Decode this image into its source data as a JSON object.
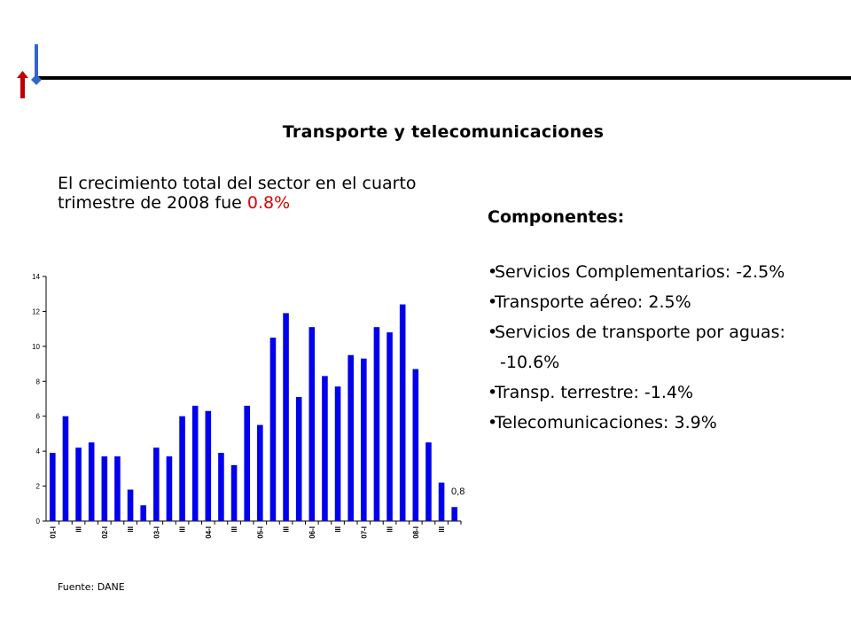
{
  "slide": {
    "title": "Transporte y telecomunicaciones",
    "intro_text": "El crecimiento total del sector en el cuarto trimestre de 2008 fue ",
    "intro_highlight": "0.8%",
    "components_heading": "Componentes:",
    "components": [
      "Servicios Complementarios: -2.5%",
      "Transporte aéreo: 2.5%",
      "Servicios de transporte por aguas:",
      "-10.6%",
      "Transp. terrestre: -1.4%",
      "Telecomunicaciones: 3.9%"
    ],
    "source": "Fuente: DANE"
  },
  "colors": {
    "bar": "#0000ee",
    "highlight": "#e00000",
    "logo_red": "#c00000",
    "logo_blue": "#3366cc"
  },
  "chart_data": {
    "type": "bar",
    "categories": [
      "01-I",
      "",
      "III",
      "",
      "02-I",
      "",
      "III",
      "",
      "03-I",
      "",
      "III",
      "",
      "04-I",
      "",
      "III",
      "",
      "05-I",
      "",
      "III",
      "",
      "06-I",
      "",
      "III",
      "",
      "07-I",
      "",
      "III",
      "",
      "08-I",
      "",
      "III",
      ""
    ],
    "values": [
      3.9,
      6.0,
      4.2,
      4.5,
      3.7,
      3.7,
      1.8,
      0.9,
      4.2,
      3.7,
      6.0,
      6.6,
      6.3,
      3.9,
      3.2,
      6.6,
      5.5,
      10.5,
      11.9,
      7.1,
      11.1,
      8.3,
      7.7,
      9.5,
      9.3,
      11.1,
      10.8,
      12.4,
      8.7,
      4.5,
      2.2,
      0.8
    ],
    "data_labels": [
      {
        "index": 31,
        "text": "0,8"
      }
    ],
    "title": "",
    "xlabel": "",
    "ylabel": "",
    "ylim": [
      0,
      14
    ],
    "yticks": [
      0,
      2,
      4,
      6,
      8,
      10,
      12,
      14
    ],
    "grid": false
  }
}
